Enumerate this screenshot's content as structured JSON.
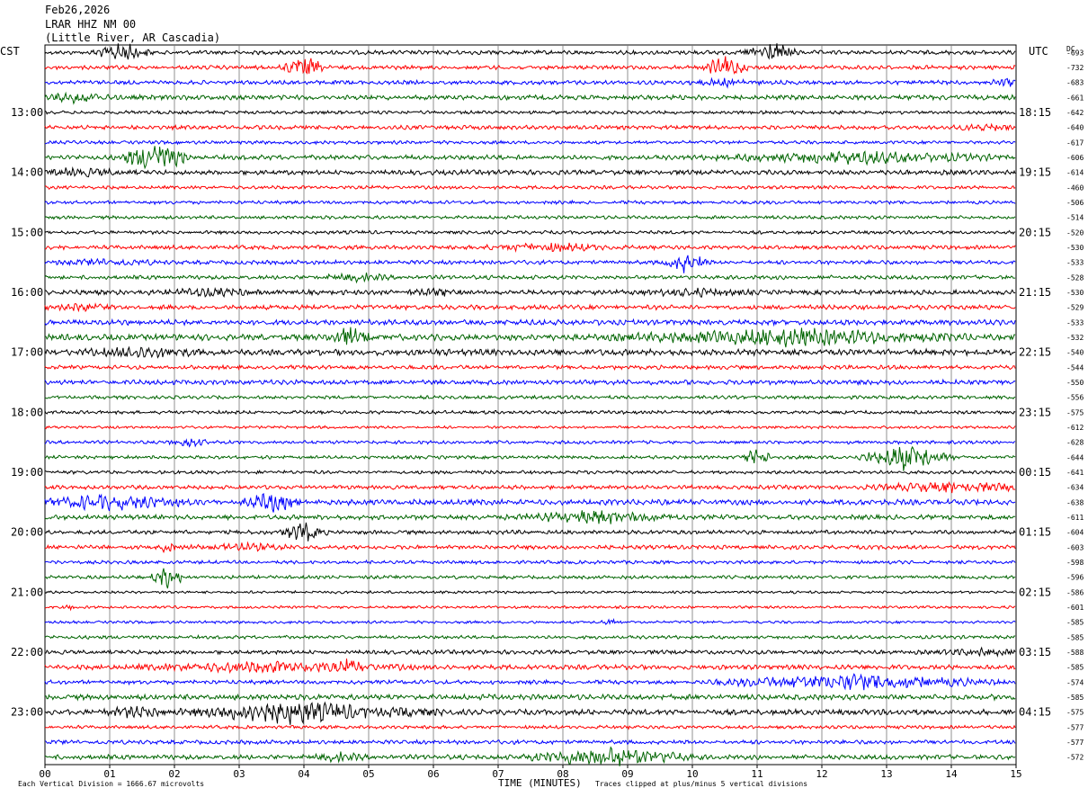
{
  "header": {
    "date": "Feb26,2026",
    "station": "LRAR HHZ NM 00",
    "location": "(Little River, AR Cascadia)"
  },
  "labels": {
    "left_tz": "CST",
    "right_tz": "UTC",
    "dc": "DC"
  },
  "footer": {
    "scale_note": "Each Vertical Division = 1666.67 microvolts",
    "xlabel": "TIME (MINUTES)",
    "clip_note": "Traces clipped at plus/minus 5 vertical divisions"
  },
  "colors": [
    "#000000",
    "#ff0000",
    "#0000ff",
    "#006400"
  ],
  "chart_data": {
    "type": "line",
    "title": "LRAR HHZ NM 00",
    "xlabel": "TIME (MINUTES)",
    "xlim": [
      0,
      15
    ],
    "x_ticks": [
      "00",
      "01",
      "02",
      "03",
      "04",
      "05",
      "06",
      "07",
      "08",
      "09",
      "10",
      "11",
      "12",
      "13",
      "14",
      "15"
    ],
    "grid": true,
    "left_hour_labels": [
      {
        "row": 4,
        "label": "13:00"
      },
      {
        "row": 8,
        "label": "14:00"
      },
      {
        "row": 12,
        "label": "15:00"
      },
      {
        "row": 16,
        "label": "16:00"
      },
      {
        "row": 20,
        "label": "17:00"
      },
      {
        "row": 24,
        "label": "18:00"
      },
      {
        "row": 28,
        "label": "19:00"
      },
      {
        "row": 32,
        "label": "20:00"
      },
      {
        "row": 36,
        "label": "21:00"
      },
      {
        "row": 40,
        "label": "22:00"
      },
      {
        "row": 44,
        "label": "23:00"
      }
    ],
    "right_hour_labels": [
      {
        "row": 4,
        "label": "18:15"
      },
      {
        "row": 8,
        "label": "19:15"
      },
      {
        "row": 12,
        "label": "20:15"
      },
      {
        "row": 16,
        "label": "21:15"
      },
      {
        "row": 20,
        "label": "22:15"
      },
      {
        "row": 24,
        "label": "23:15"
      },
      {
        "row": 28,
        "label": "00:15"
      },
      {
        "row": 32,
        "label": "01:15"
      },
      {
        "row": 36,
        "label": "02:15"
      },
      {
        "row": 40,
        "label": "03:15"
      },
      {
        "row": 44,
        "label": "04:15"
      }
    ],
    "dc_offsets": [
      "-693",
      "-732",
      "-683",
      "-661",
      "-642",
      "-640",
      "-617",
      "-606",
      "-614",
      "-460",
      "-506",
      "-514",
      "-520",
      "-530",
      "-533",
      "-528",
      "-530",
      "-529",
      "-533",
      "-532",
      "-540",
      "-544",
      "-550",
      "-556",
      "-575",
      "-612",
      "-628",
      "-644",
      "-641",
      "-634",
      "-638",
      "-611",
      "-604",
      "-603",
      "-598",
      "-596",
      "-586",
      "-601",
      "-585",
      "-585",
      "-588",
      "-585",
      "-574",
      "-585",
      "-575",
      "-577",
      "-577",
      "-572"
    ],
    "traces": [
      {
        "amp": 3,
        "events": [
          [
            1.2,
            0.5,
            12
          ],
          [
            11.2,
            0.5,
            13
          ]
        ]
      },
      {
        "amp": 3,
        "events": [
          [
            4.0,
            0.4,
            14
          ],
          [
            10.5,
            0.4,
            14
          ]
        ]
      },
      {
        "amp": 3,
        "events": [
          [
            10.5,
            0.6,
            4
          ],
          [
            14.8,
            0.3,
            5
          ]
        ]
      },
      {
        "amp": 3.5,
        "events": [
          [
            0.5,
            0.6,
            6
          ]
        ]
      },
      {
        "amp": 2.5,
        "events": []
      },
      {
        "amp": 3,
        "events": [
          [
            14.5,
            0.5,
            4
          ]
        ]
      },
      {
        "amp": 2.5,
        "events": []
      },
      {
        "amp": 3.5,
        "events": [
          [
            1.7,
            0.6,
            20
          ],
          [
            12.5,
            2.5,
            7
          ]
        ]
      },
      {
        "amp": 3.5,
        "events": [
          [
            0.5,
            1.0,
            4
          ]
        ]
      },
      {
        "amp": 2.5,
        "events": []
      },
      {
        "amp": 2.5,
        "events": []
      },
      {
        "amp": 2.5,
        "events": []
      },
      {
        "amp": 2.5,
        "events": []
      },
      {
        "amp": 3,
        "events": [
          [
            7.8,
            1.2,
            5
          ]
        ]
      },
      {
        "amp": 3,
        "events": [
          [
            9.9,
            0.4,
            14
          ],
          [
            1.0,
            1.0,
            3
          ]
        ]
      },
      {
        "amp": 3,
        "events": [
          [
            4.8,
            0.6,
            5
          ]
        ]
      },
      {
        "amp": 3.5,
        "events": [
          [
            2.5,
            1.0,
            4
          ],
          [
            6.0,
            0.5,
            4
          ],
          [
            10.0,
            1.0,
            4
          ]
        ]
      },
      {
        "amp": 3.5,
        "events": [
          [
            0.6,
            0.5,
            4
          ]
        ]
      },
      {
        "amp": 4,
        "events": []
      },
      {
        "amp": 4.5,
        "events": [
          [
            4.7,
            0.4,
            12
          ],
          [
            11.5,
            3.0,
            10
          ]
        ]
      },
      {
        "amp": 4.5,
        "events": [
          [
            1.5,
            1.0,
            5
          ]
        ]
      },
      {
        "amp": 3,
        "events": []
      },
      {
        "amp": 3.5,
        "events": []
      },
      {
        "amp": 2.5,
        "events": []
      },
      {
        "amp": 2.5,
        "events": []
      },
      {
        "amp": 2,
        "events": []
      },
      {
        "amp": 2.5,
        "events": [
          [
            2.2,
            0.4,
            5
          ]
        ]
      },
      {
        "amp": 2.5,
        "events": [
          [
            11.0,
            0.3,
            10
          ],
          [
            13.3,
            0.8,
            18
          ]
        ]
      },
      {
        "amp": 2.5,
        "events": []
      },
      {
        "amp": 3,
        "events": [
          [
            14.0,
            1.5,
            6
          ]
        ]
      },
      {
        "amp": 4,
        "events": [
          [
            1.0,
            1.5,
            9
          ],
          [
            3.5,
            0.5,
            12
          ]
        ]
      },
      {
        "amp": 3.5,
        "events": [
          [
            8.5,
            1.5,
            8
          ]
        ]
      },
      {
        "amp": 3,
        "events": [
          [
            4.0,
            0.4,
            13
          ]
        ]
      },
      {
        "amp": 3,
        "events": [
          [
            3.0,
            1.0,
            4
          ],
          [
            1.9,
            0.2,
            6
          ]
        ]
      },
      {
        "amp": 2.5,
        "events": []
      },
      {
        "amp": 2.5,
        "events": [
          [
            1.9,
            0.3,
            14
          ]
        ]
      },
      {
        "amp": 2,
        "events": []
      },
      {
        "amp": 2,
        "events": [
          [
            0.4,
            0.1,
            5
          ]
        ]
      },
      {
        "amp": 2,
        "events": [
          [
            8.7,
            0.2,
            4
          ]
        ]
      },
      {
        "amp": 2.5,
        "events": []
      },
      {
        "amp": 3,
        "events": [
          [
            14.5,
            0.8,
            4
          ]
        ]
      },
      {
        "amp": 3.5,
        "events": [
          [
            3.5,
            2.5,
            6
          ],
          [
            4.7,
            0.3,
            10
          ]
        ]
      },
      {
        "amp": 3,
        "events": [
          [
            12.5,
            2.5,
            10
          ]
        ]
      },
      {
        "amp": 4,
        "events": []
      },
      {
        "amp": 4,
        "events": [
          [
            3.8,
            1.8,
            14
          ],
          [
            1.5,
            0.8,
            6
          ],
          [
            5.5,
            0.8,
            5
          ]
        ]
      },
      {
        "amp": 2.5,
        "events": []
      },
      {
        "amp": 3,
        "events": []
      },
      {
        "amp": 3.5,
        "events": [
          [
            8.7,
            1.5,
            12
          ],
          [
            4.5,
            0.5,
            5
          ]
        ]
      }
    ]
  }
}
